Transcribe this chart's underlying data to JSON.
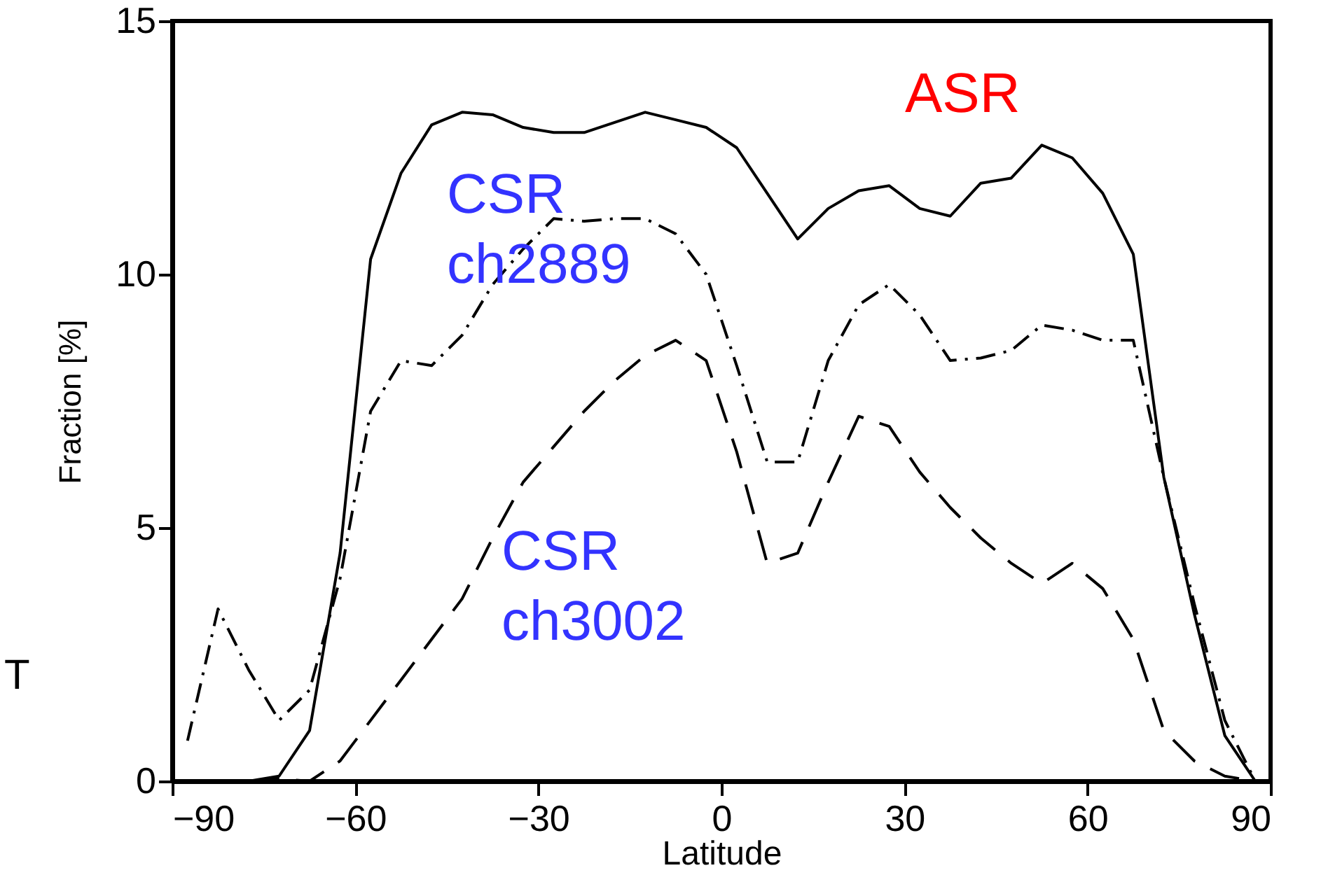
{
  "chart_data": {
    "type": "line",
    "xlabel": "Latitude",
    "ylabel": "Fraction [%]",
    "x": [
      -87.5,
      -82.5,
      -77.5,
      -72.5,
      -67.5,
      -62.5,
      -57.5,
      -52.5,
      -47.5,
      -42.5,
      -37.5,
      -32.5,
      -27.5,
      -22.5,
      -17.5,
      -12.5,
      -7.5,
      -2.5,
      2.5,
      7.5,
      12.5,
      17.5,
      22.5,
      27.5,
      32.5,
      37.5,
      42.5,
      47.5,
      52.5,
      57.5,
      62.5,
      67.5,
      72.5,
      77.5,
      82.5,
      87.5
    ],
    "series": [
      {
        "name": "ASR",
        "color": "#000000",
        "line_style": "solid",
        "values": [
          null,
          0,
          0,
          0.1,
          1.0,
          4.5,
          10.3,
          12.0,
          12.95,
          13.2,
          13.15,
          12.9,
          12.8,
          12.8,
          13.0,
          13.2,
          13.05,
          12.9,
          12.5,
          11.6,
          10.7,
          11.3,
          11.65,
          11.75,
          11.3,
          11.15,
          11.8,
          11.9,
          12.55,
          12.3,
          11.6,
          10.4,
          6.0,
          3.3,
          0.9,
          0
        ]
      },
      {
        "name": "CSR\nch2889",
        "color": "#000000",
        "line_style": "dashdot",
        "values": [
          0.8,
          3.4,
          2.2,
          1.2,
          1.8,
          4.0,
          7.3,
          8.3,
          8.2,
          8.8,
          9.8,
          10.5,
          11.1,
          11.05,
          11.1,
          11.1,
          10.8,
          10.0,
          8.2,
          6.3,
          6.3,
          8.3,
          9.4,
          9.8,
          9.2,
          8.3,
          8.35,
          8.5,
          9.0,
          8.9,
          8.7,
          8.7,
          6.0,
          3.5,
          1.2,
          0
        ]
      },
      {
        "name": "CSR\nch3002",
        "color": "#000000",
        "line_style": "dashed",
        "values": [
          null,
          null,
          0,
          0.05,
          0,
          0.4,
          1.2,
          2.0,
          2.8,
          3.6,
          4.8,
          5.9,
          6.6,
          7.3,
          7.9,
          8.4,
          8.7,
          8.3,
          6.5,
          4.3,
          4.5,
          5.9,
          7.2,
          7.0,
          6.1,
          5.4,
          4.8,
          4.3,
          3.9,
          4.3,
          3.8,
          2.8,
          1.0,
          0.4,
          0.1,
          0
        ]
      }
    ],
    "annotations": [
      "T"
    ],
    "xlim": [
      -90,
      90
    ],
    "ylim": [
      0,
      15
    ],
    "xticks": [
      -90,
      -60,
      -30,
      0,
      30,
      60,
      90
    ],
    "yticks": [
      0,
      5,
      10,
      15
    ],
    "grid": false,
    "marker": "none"
  }
}
